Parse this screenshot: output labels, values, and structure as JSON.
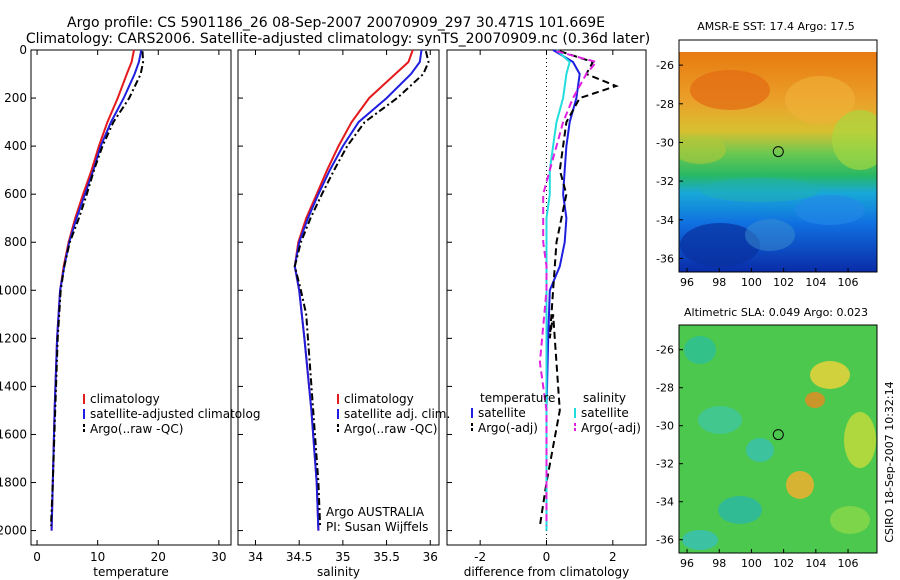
{
  "header": {
    "title_line1": "Argo profile: CS 5901186_26 08-Sep-2007 20070909_297 30.471S 101.669E",
    "title_line2": "Climatology: CARS2006. Satellite-adjusted climatology: synTS_20070909.nc (0.36d later)"
  },
  "colors": {
    "climatology": "#e41a1c",
    "satellite": "#1f1fe0",
    "argo": "#000000",
    "satellite_salinity": "#22dddd",
    "argo_salinity_adj": "#e020e0"
  },
  "chart_data": [
    {
      "type": "line",
      "panel": "temperature",
      "xlabel": "temperature",
      "ylabel": "",
      "xlim": [
        -1,
        32
      ],
      "ylim": [
        0,
        2060
      ],
      "y_reversed": true,
      "xticks": [
        0,
        10,
        20,
        30
      ],
      "yticks": [
        0,
        200,
        400,
        600,
        800,
        1000,
        1200,
        1400,
        1600,
        1800,
        2000
      ],
      "legend": [
        "climatology",
        "satellite-adjusted climatolog",
        "Argo(..raw -QC)"
      ],
      "series": [
        {
          "name": "climatology",
          "x": [
            16.0,
            15.6,
            14.8,
            13.3,
            11.6,
            10.2,
            9.0,
            7.6,
            6.3,
            5.2,
            4.4,
            3.8,
            3.3,
            2.9,
            2.6,
            2.4
          ],
          "y": [
            0,
            50,
            100,
            200,
            300,
            400,
            500,
            600,
            700,
            800,
            900,
            1000,
            1200,
            1500,
            1800,
            2000
          ]
        },
        {
          "name": "satellite-adjusted climatolog",
          "x": [
            17.2,
            16.8,
            16.1,
            14.3,
            12.2,
            10.5,
            9.3,
            7.9,
            6.5,
            5.3,
            4.5,
            3.8,
            3.3,
            2.9,
            2.6,
            2.4
          ],
          "y": [
            0,
            50,
            100,
            200,
            300,
            400,
            500,
            600,
            700,
            800,
            900,
            1000,
            1200,
            1500,
            1800,
            2000
          ]
        },
        {
          "name": "Argo(..raw -QC)",
          "x": [
            17.4,
            17.5,
            17.1,
            15.2,
            12.6,
            10.8,
            9.4,
            8.2,
            6.9,
            5.4,
            4.5,
            3.9,
            3.4,
            3.0,
            2.6,
            2.3
          ],
          "y": [
            5,
            50,
            100,
            200,
            300,
            400,
            500,
            600,
            700,
            800,
            900,
            1000,
            1200,
            1500,
            1800,
            1980
          ]
        }
      ]
    },
    {
      "type": "line",
      "panel": "salinity",
      "xlabel": "salinity",
      "ylabel": "",
      "xlim": [
        33.8,
        36.1
      ],
      "ylim": [
        0,
        2060
      ],
      "y_reversed": true,
      "xticks": [
        34,
        34.5,
        35,
        35.5,
        36
      ],
      "legend": [
        "climatology",
        "satellite adj. clim.",
        "Argo(..raw -QC)"
      ],
      "annotations": [
        "Argo AUSTRALIA",
        "PI: Susan Wijffels"
      ],
      "series": [
        {
          "name": "climatology",
          "x": [
            35.8,
            35.75,
            35.6,
            35.3,
            35.1,
            34.95,
            34.82,
            34.7,
            34.58,
            34.49,
            34.45,
            34.5,
            34.56,
            34.64,
            34.7,
            34.72
          ],
          "y": [
            0,
            50,
            100,
            200,
            300,
            400,
            500,
            600,
            700,
            800,
            900,
            1000,
            1200,
            1500,
            1800,
            2000
          ]
        },
        {
          "name": "satellite adj. clim.",
          "x": [
            35.9,
            35.88,
            35.78,
            35.5,
            35.18,
            35.0,
            34.85,
            34.72,
            34.6,
            34.5,
            34.45,
            34.5,
            34.56,
            34.64,
            34.7,
            34.72
          ],
          "y": [
            0,
            50,
            100,
            200,
            300,
            400,
            500,
            600,
            700,
            800,
            900,
            1000,
            1200,
            1500,
            1800,
            2000
          ]
        },
        {
          "name": "Argo(..raw -QC)",
          "x": [
            35.95,
            35.98,
            35.92,
            35.62,
            35.25,
            35.05,
            34.9,
            34.76,
            34.63,
            34.52,
            34.45,
            34.52,
            34.58,
            34.66,
            34.72,
            34.74
          ],
          "y": [
            5,
            50,
            100,
            200,
            300,
            400,
            500,
            600,
            700,
            800,
            900,
            1000,
            1100,
            1500,
            1800,
            1980
          ]
        }
      ]
    },
    {
      "type": "line",
      "panel": "difference",
      "xlabel": "difference from climatology",
      "ylabel": "",
      "xlim": [
        -3,
        3
      ],
      "ylim": [
        0,
        2060
      ],
      "y_reversed": true,
      "xticks": [
        -2,
        0,
        2
      ],
      "legend_groups": [
        {
          "header": "temperature",
          "items": [
            "satellite",
            "Argo(-adj)"
          ]
        },
        {
          "header": "salinity",
          "items": [
            "satellite",
            "Argo(-adj)"
          ]
        }
      ],
      "series": [
        {
          "name": "temperature satellite",
          "x": [
            0.2,
            0.8,
            1.0,
            0.9,
            0.7,
            0.6,
            0.55,
            0.5,
            0.6,
            0.55,
            0.4,
            0.1,
            0.05,
            0.0,
            0.0,
            0.0
          ],
          "y": [
            0,
            50,
            100,
            200,
            300,
            400,
            500,
            600,
            700,
            800,
            900,
            1000,
            1200,
            1500,
            1800,
            2000
          ]
        },
        {
          "name": "temperature Argo(-adj)",
          "x": [
            0.4,
            1.4,
            1.2,
            2.1,
            1.0,
            0.6,
            0.5,
            0.4,
            0.6,
            0.3,
            0.2,
            0.1,
            0.2,
            0.4,
            0.0,
            -0.2
          ],
          "y": [
            5,
            50,
            100,
            150,
            200,
            300,
            400,
            500,
            600,
            800,
            1000,
            1200,
            1100,
            1500,
            1800,
            1980
          ]
        },
        {
          "name": "salinity satellite",
          "x": [
            0.3,
            0.7,
            0.6,
            0.5,
            0.3,
            0.2,
            0.1,
            0.1,
            0.0,
            0.0,
            0.0,
            0.0,
            0.0,
            0.0,
            0.0,
            0.0
          ],
          "y": [
            0,
            50,
            100,
            200,
            300,
            400,
            500,
            600,
            700,
            800,
            900,
            1000,
            1200,
            1500,
            1800,
            2000
          ]
        },
        {
          "name": "salinity Argo(-adj)",
          "x": [
            0.3,
            1.5,
            1.2,
            0.8,
            0.5,
            0.3,
            0.1,
            -0.1,
            -0.1,
            -0.1,
            0.0,
            0.0,
            -0.2,
            0.0,
            0.0,
            0.0
          ],
          "y": [
            5,
            50,
            100,
            200,
            300,
            400,
            500,
            600,
            700,
            800,
            900,
            1000,
            1300,
            1500,
            1800,
            1980
          ]
        }
      ]
    },
    {
      "type": "heatmap",
      "panel": "sst_map",
      "title": "AMSR-E SST: 17.4  Argo: 17.5",
      "xlim": [
        95.5,
        107.8
      ],
      "ylim": [
        -36.7,
        -24.7
      ],
      "xticks": [
        96,
        98,
        100,
        102,
        104,
        106
      ],
      "yticks": [
        -26,
        -28,
        -30,
        -32,
        -34,
        -36
      ],
      "marker": {
        "lon": 101.669,
        "lat": -30.471
      }
    },
    {
      "type": "heatmap",
      "panel": "sla_map",
      "title": "Altimetric SLA: 0.049  Argo: 0.023",
      "xlim": [
        95.5,
        107.8
      ],
      "ylim": [
        -36.7,
        -24.7
      ],
      "xticks": [
        96,
        98,
        100,
        102,
        104,
        106
      ],
      "yticks": [
        -26,
        -28,
        -30,
        -32,
        -34,
        -36
      ],
      "marker": {
        "lon": 101.669,
        "lat": -30.471
      }
    }
  ],
  "side_label": "CSIRO 18-Sep-2007 10:32:14"
}
